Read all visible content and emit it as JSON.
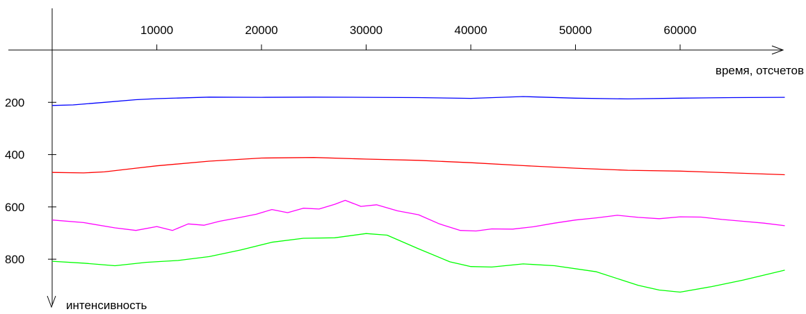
{
  "chart_data": {
    "type": "line",
    "xlabel": "время, отсчетов",
    "ylabel": "интенсивность",
    "x_ticks": [
      10000,
      20000,
      30000,
      40000,
      50000,
      60000
    ],
    "y_ticks": [
      200,
      400,
      600,
      800
    ],
    "xlim": [
      0,
      70000
    ],
    "ylim": [
      0,
      1000
    ],
    "y_axis_inverted": true,
    "x_axis_position": "top",
    "grid": false,
    "legend": "none",
    "series": [
      {
        "color": "#0000ff",
        "x": [
          0,
          2000,
          5000,
          8000,
          10000,
          15000,
          20000,
          25000,
          30000,
          35000,
          40000,
          45000,
          50000,
          55000,
          60000,
          65000,
          70000
        ],
        "values": [
          212,
          210,
          200,
          190,
          186,
          180,
          181,
          180,
          181,
          182,
          185,
          178,
          184,
          187,
          184,
          182,
          181
        ]
      },
      {
        "color": "#ff0000",
        "x": [
          0,
          3000,
          5000,
          8000,
          10000,
          15000,
          20000,
          25000,
          30000,
          35000,
          40000,
          45000,
          50000,
          55000,
          60000,
          65000,
          70000
        ],
        "values": [
          468,
          470,
          466,
          452,
          443,
          425,
          413,
          411,
          417,
          422,
          431,
          442,
          452,
          460,
          463,
          470,
          477
        ]
      },
      {
        "color": "#ff00ff",
        "x": [
          0,
          3000,
          6000,
          8000,
          10000,
          11500,
          13000,
          14500,
          16000,
          18000,
          19500,
          21000,
          22500,
          24000,
          25500,
          27000,
          28000,
          29500,
          31000,
          33000,
          35000,
          37000,
          39000,
          40500,
          42000,
          44000,
          46000,
          48000,
          50000,
          52000,
          54000,
          56000,
          58000,
          60000,
          62000,
          64000,
          66000,
          68000,
          70000
        ],
        "values": [
          650,
          660,
          680,
          690,
          675,
          690,
          665,
          670,
          655,
          640,
          628,
          610,
          622,
          605,
          608,
          590,
          575,
          598,
          592,
          615,
          630,
          665,
          690,
          692,
          684,
          685,
          676,
          662,
          650,
          642,
          632,
          640,
          645,
          638,
          639,
          648,
          655,
          662,
          672
        ]
      },
      {
        "color": "#00ff00",
        "x": [
          0,
          3000,
          6000,
          9000,
          12000,
          15000,
          18000,
          21000,
          24000,
          27000,
          30000,
          32000,
          35000,
          38000,
          40000,
          42000,
          45000,
          48000,
          52000,
          56000,
          58000,
          60000,
          63000,
          66000,
          70000
        ],
        "values": [
          808,
          815,
          825,
          812,
          805,
          790,
          765,
          735,
          720,
          718,
          702,
          708,
          760,
          810,
          828,
          830,
          818,
          825,
          848,
          900,
          918,
          926,
          905,
          880,
          842
        ]
      }
    ]
  }
}
